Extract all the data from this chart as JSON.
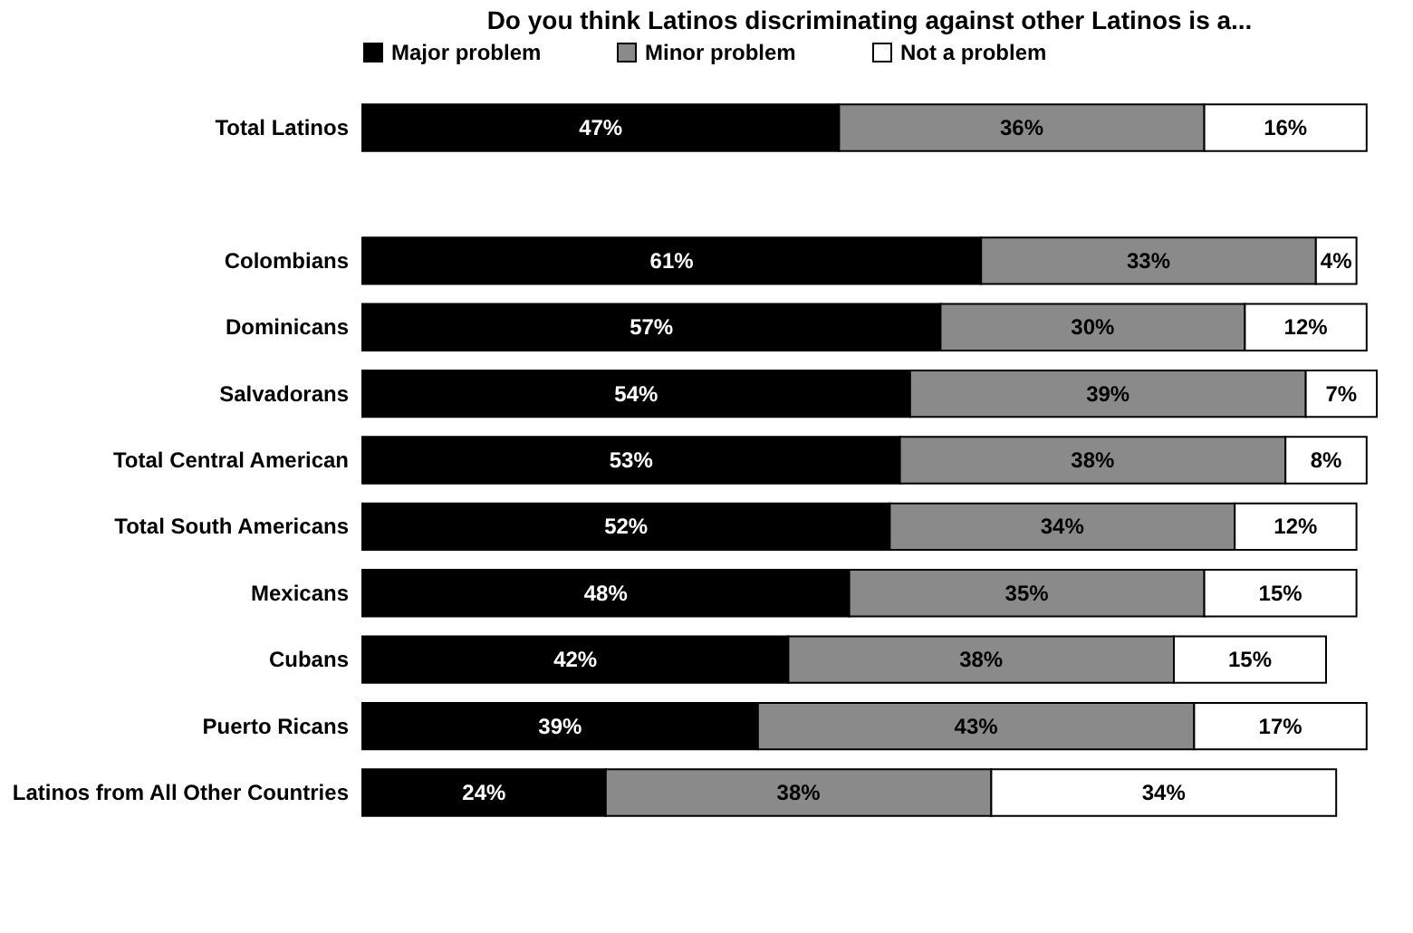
{
  "chart_data": {
    "type": "bar",
    "orientation": "horizontal",
    "stacked": true,
    "title": "Do you think Latinos discriminating against other Latinos is a...",
    "legend": "top",
    "categories": [
      "Total Latinos",
      null,
      "Colombians",
      "Dominicans",
      "Salvadorans",
      "Total Central American",
      "Total South Americans",
      "Mexicans",
      "Cubans",
      "Puerto Ricans",
      "Latinos from All Other Countries"
    ],
    "series": [
      {
        "name": "Major problem",
        "color": "#000000",
        "values": [
          47,
          null,
          61,
          57,
          54,
          53,
          52,
          48,
          42,
          39,
          24
        ],
        "value_labels": [
          "47%",
          null,
          "61%",
          "57%",
          "54%",
          "53%",
          "52%",
          "48%",
          "42%",
          "39%",
          "24%"
        ]
      },
      {
        "name": "Minor problem",
        "color": "#8a8a8a",
        "values": [
          36,
          null,
          33,
          30,
          39,
          38,
          34,
          35,
          38,
          43,
          38
        ],
        "value_labels": [
          "36%",
          null,
          "33%",
          "30%",
          "39%",
          "38%",
          "34%",
          "35%",
          "38%",
          "43%",
          "38%"
        ]
      },
      {
        "name": "Not a problem",
        "color": "#ffffff",
        "values": [
          16,
          null,
          4,
          12,
          7,
          8,
          12,
          15,
          15,
          17,
          34
        ],
        "value_labels": [
          "16%",
          null,
          "4%",
          "12%",
          "7%",
          "8%",
          "12%",
          "15%",
          "15%",
          "17%",
          "34%"
        ]
      }
    ]
  }
}
